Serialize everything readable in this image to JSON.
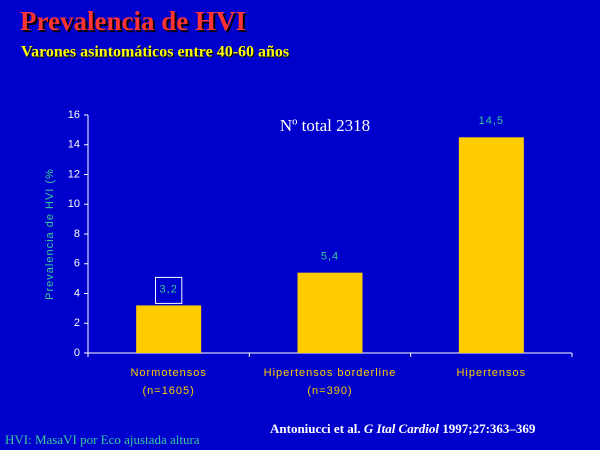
{
  "chart_data": {
    "type": "bar",
    "title": "Prevalencia de HVI",
    "subtitle": "Varones asintomáticos entre 40-60 años",
    "y_label": "Prevalencia de HVI (%",
    "annotation": "Nº total 2318",
    "categories": [
      "Normotensos\n(n=1605)",
      "Hipertensos borderline\n(n=390)",
      "Hipertensos"
    ],
    "values": [
      3.2,
      5.4,
      14.5
    ],
    "value_labels": [
      "3,2",
      "5,4",
      "14,5"
    ],
    "color": "#ffcc00",
    "ylim": [
      0,
      16
    ],
    "yticks": [
      0,
      2,
      4,
      6,
      8,
      10,
      12,
      14,
      16
    ],
    "footnote": "HVI: MasaVI por Eco ajustada altura",
    "citation": [
      "Antoniucci et al. ",
      "G Ital Cardiol",
      " 1997;27:363–369"
    ]
  }
}
